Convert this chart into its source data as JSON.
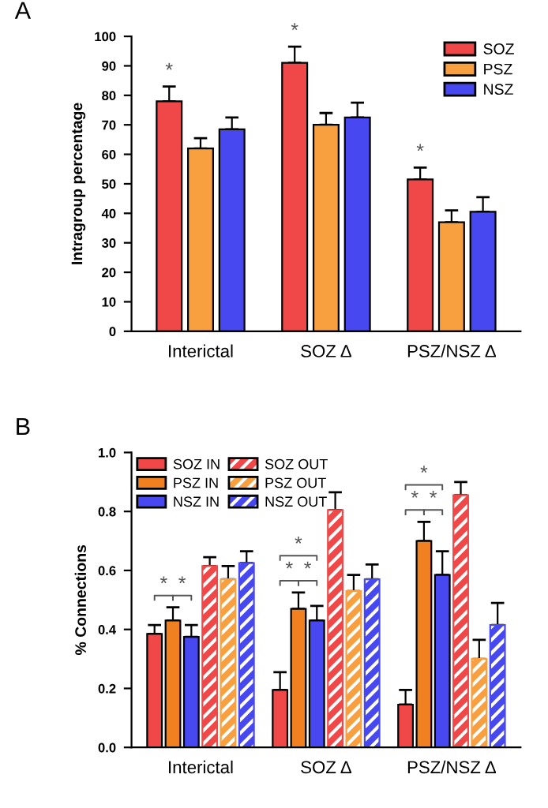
{
  "chart_data": [
    {
      "type": "bar",
      "title": "A",
      "ylabel": "Intragroup percentage",
      "categories": [
        "Interictal",
        "SOZ Δ",
        "PSZ/NSZ Δ"
      ],
      "ylim": [
        0,
        100
      ],
      "yticks": [
        0,
        10,
        20,
        30,
        40,
        50,
        60,
        70,
        80,
        90,
        100
      ],
      "legend": "top right",
      "series": [
        {
          "name": "SOZ",
          "color": "#f04848",
          "values": [
            78,
            91,
            51.5
          ],
          "errors": [
            5,
            5.5,
            4
          ]
        },
        {
          "name": "PSZ",
          "color": "#f8a040",
          "values": [
            62,
            70,
            37
          ],
          "errors": [
            3.5,
            4,
            4
          ]
        },
        {
          "name": "NSZ",
          "color": "#4848f0",
          "values": [
            68.5,
            72.5,
            40.5
          ],
          "errors": [
            4,
            5,
            5
          ]
        }
      ],
      "annotations": [
        "*",
        "*",
        "*"
      ]
    },
    {
      "type": "bar",
      "title": "B",
      "ylabel": "% Connections",
      "categories": [
        "Interictal",
        "SOZ Δ",
        "PSZ/NSZ Δ"
      ],
      "ylim": [
        0,
        1.0
      ],
      "yticks": [
        {
          "value": 0,
          "label": "0.0"
        },
        0.2,
        0.4,
        0.6,
        0.8,
        {
          "value": 1,
          "label": "1.0"
        }
      ],
      "legend": "top left",
      "series": [
        {
          "name": "SOZ IN",
          "color": "#f04848",
          "values": [
            0.385,
            0.195,
            0.145
          ],
          "errors": [
            0.03,
            0.06,
            0.05
          ]
        },
        {
          "name": "PSZ IN",
          "color": "#f08020",
          "values": [
            0.43,
            0.47,
            0.7
          ],
          "errors": [
            0.045,
            0.055,
            0.065
          ]
        },
        {
          "name": "NSZ IN",
          "color": "#4848f0",
          "values": [
            0.375,
            0.43,
            0.585
          ],
          "errors": [
            0.04,
            0.05,
            0.08
          ]
        },
        {
          "name": "SOZ OUT",
          "color": "#f04848",
          "values": [
            0.615,
            0.805,
            0.855
          ],
          "errors": [
            0.03,
            0.06,
            0.045
          ]
        },
        {
          "name": "PSZ OUT",
          "color": "#f8a040",
          "values": [
            0.57,
            0.53,
            0.3
          ],
          "errors": [
            0.045,
            0.055,
            0.065
          ]
        },
        {
          "name": "NSZ OUT",
          "color": "#4848f0",
          "values": [
            0.625,
            0.57,
            0.415
          ],
          "errors": [
            0.04,
            0.05,
            0.075
          ]
        }
      ],
      "annotations": [
        "*",
        "*",
        "*",
        "*",
        "*",
        "*",
        "*",
        "*"
      ]
    }
  ]
}
